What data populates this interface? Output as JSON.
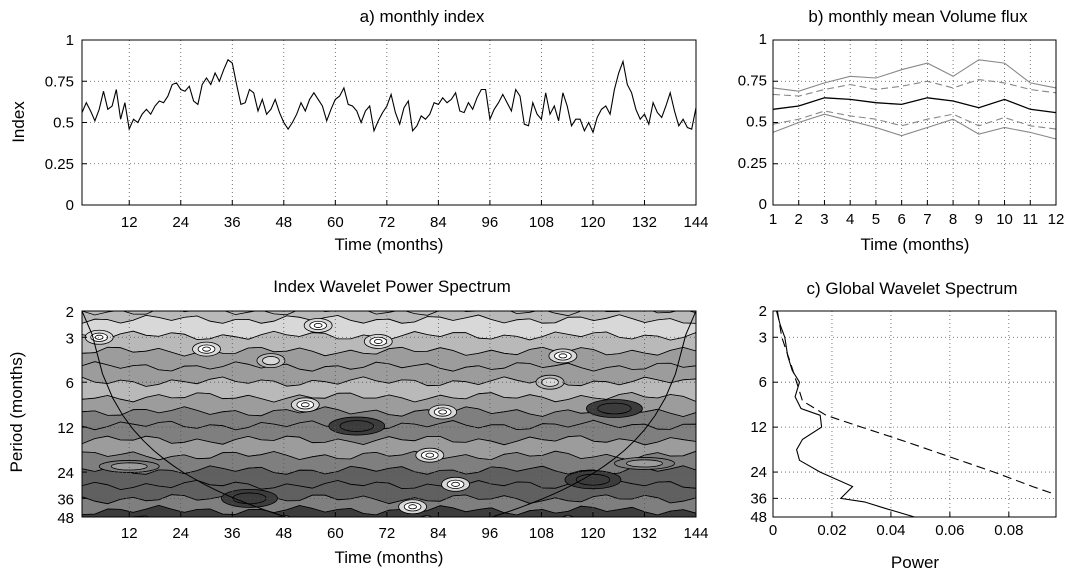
{
  "chart_data": [
    {
      "id": "a",
      "type": "line",
      "title": "a) monthly index",
      "xlabel": "Time (months)",
      "ylabel": "Index",
      "xlim": [
        1,
        144
      ],
      "ylim": [
        0,
        1
      ],
      "xticks": [
        "12",
        "24",
        "36",
        "48",
        "60",
        "72",
        "84",
        "96",
        "108",
        "120",
        "132",
        "144"
      ],
      "yticks": [
        "0",
        "0.25",
        "0.5",
        "0.75",
        "1"
      ],
      "grid": true,
      "series": [
        {
          "x_start": 1,
          "x_step": 1,
          "values": [
            0.56,
            0.62,
            0.57,
            0.51,
            0.58,
            0.69,
            0.58,
            0.6,
            0.7,
            0.52,
            0.62,
            0.46,
            0.52,
            0.5,
            0.55,
            0.58,
            0.55,
            0.6,
            0.63,
            0.62,
            0.66,
            0.73,
            0.74,
            0.7,
            0.69,
            0.72,
            0.63,
            0.61,
            0.73,
            0.77,
            0.73,
            0.8,
            0.75,
            0.82,
            0.88,
            0.86,
            0.73,
            0.61,
            0.62,
            0.7,
            0.68,
            0.57,
            0.64,
            0.55,
            0.58,
            0.64,
            0.56,
            0.5,
            0.46,
            0.5,
            0.55,
            0.62,
            0.57,
            0.64,
            0.68,
            0.64,
            0.6,
            0.51,
            0.58,
            0.64,
            0.66,
            0.71,
            0.61,
            0.6,
            0.57,
            0.5,
            0.57,
            0.6,
            0.45,
            0.51,
            0.56,
            0.6,
            0.67,
            0.56,
            0.49,
            0.59,
            0.63,
            0.45,
            0.48,
            0.54,
            0.52,
            0.55,
            0.62,
            0.61,
            0.65,
            0.62,
            0.64,
            0.68,
            0.57,
            0.56,
            0.62,
            0.58,
            0.65,
            0.7,
            0.7,
            0.52,
            0.58,
            0.62,
            0.67,
            0.62,
            0.57,
            0.7,
            0.66,
            0.49,
            0.48,
            0.62,
            0.55,
            0.52,
            0.68,
            0.55,
            0.6,
            0.51,
            0.68,
            0.6,
            0.48,
            0.52,
            0.52,
            0.45,
            0.5,
            0.44,
            0.53,
            0.58,
            0.6,
            0.55,
            0.7,
            0.8,
            0.87,
            0.73,
            0.68,
            0.58,
            0.52,
            0.55,
            0.49,
            0.62,
            0.56,
            0.53,
            0.6,
            0.68,
            0.57,
            0.48,
            0.52,
            0.47,
            0.46,
            0.59
          ]
        }
      ]
    },
    {
      "id": "b",
      "type": "line",
      "title": "b) monthly mean Volume flux",
      "xlabel": "Time (months)",
      "xlim": [
        1,
        12
      ],
      "ylim": [
        0,
        1
      ],
      "xticks": [
        "1",
        "2",
        "3",
        "4",
        "5",
        "6",
        "7",
        "8",
        "9",
        "10",
        "11",
        "12"
      ],
      "yticks": [
        "0",
        "0.25",
        "0.5",
        "0.75",
        "1"
      ],
      "grid": true,
      "series": [
        {
          "style": "outer-solid-gray",
          "values": [
            0.71,
            0.69,
            0.74,
            0.78,
            0.77,
            0.82,
            0.86,
            0.78,
            0.88,
            0.86,
            0.74,
            0.71
          ]
        },
        {
          "style": "dashed-gray",
          "values": [
            0.67,
            0.66,
            0.7,
            0.73,
            0.7,
            0.72,
            0.75,
            0.71,
            0.76,
            0.74,
            0.7,
            0.68
          ]
        },
        {
          "style": "mean-solid-black",
          "values": [
            0.58,
            0.6,
            0.65,
            0.64,
            0.62,
            0.61,
            0.65,
            0.63,
            0.59,
            0.64,
            0.58,
            0.56
          ]
        },
        {
          "style": "dashed-gray",
          "values": [
            0.49,
            0.52,
            0.57,
            0.54,
            0.52,
            0.48,
            0.52,
            0.55,
            0.48,
            0.53,
            0.48,
            0.46
          ]
        },
        {
          "style": "outer-solid-gray",
          "values": [
            0.44,
            0.5,
            0.55,
            0.51,
            0.47,
            0.42,
            0.47,
            0.52,
            0.43,
            0.47,
            0.44,
            0.4
          ]
        }
      ]
    },
    {
      "id": "wps",
      "type": "heatmap",
      "title": "Index Wavelet Power Spectrum",
      "xlabel": "Time (months)",
      "ylabel": "Period (months)",
      "xlim": [
        1,
        144
      ],
      "ylim": [
        2,
        48
      ],
      "yscale": "log",
      "xticks": [
        "12",
        "24",
        "36",
        "48",
        "60",
        "72",
        "84",
        "96",
        "108",
        "120",
        "132",
        "144"
      ],
      "yticks": [
        "2",
        "3",
        "6",
        "12",
        "24",
        "36",
        "48"
      ],
      "grid": true,
      "period_bands": [
        {
          "period": 2.0,
          "level": 2
        },
        {
          "period": 2.6,
          "level": 1
        },
        {
          "period": 3.3,
          "level": 2
        },
        {
          "period": 4.2,
          "level": 3
        },
        {
          "period": 5.3,
          "level": 3
        },
        {
          "period": 6.7,
          "level": 2
        },
        {
          "period": 8.5,
          "level": 3
        },
        {
          "period": 10.5,
          "level": 4
        },
        {
          "period": 13.0,
          "level": 4
        },
        {
          "period": 16.5,
          "level": 3
        },
        {
          "period": 21.0,
          "level": 4
        },
        {
          "period": 26.0,
          "level": 5
        },
        {
          "period": 33.0,
          "level": 5
        },
        {
          "period": 40.0,
          "level": 4
        },
        {
          "period": 47.0,
          "level": 6
        }
      ],
      "blobs": [
        {
          "x": 5,
          "period": 3.0,
          "level": 0
        },
        {
          "x": 30,
          "period": 3.6,
          "level": 0
        },
        {
          "x": 56,
          "period": 2.5,
          "level": 0
        },
        {
          "x": 45,
          "period": 4.3,
          "level": 1
        },
        {
          "x": 113,
          "period": 4.0,
          "level": 0
        },
        {
          "x": 85,
          "period": 9.5,
          "level": 0
        },
        {
          "x": 53,
          "period": 8.5,
          "level": 0
        },
        {
          "x": 110,
          "period": 6.0,
          "level": 1
        },
        {
          "x": 70,
          "period": 3.2,
          "level": 0
        },
        {
          "x": 125,
          "period": 9.0,
          "level": 6
        },
        {
          "x": 65,
          "period": 11.8,
          "level": 6
        },
        {
          "x": 120,
          "period": 27.0,
          "level": 6
        },
        {
          "x": 40,
          "period": 36.0,
          "level": 6
        },
        {
          "x": 82,
          "period": 18.5,
          "level": 0
        },
        {
          "x": 88,
          "period": 29.0,
          "level": 0
        },
        {
          "x": 78,
          "period": 41.0,
          "level": 0
        },
        {
          "x": 12,
          "period": 22.0,
          "level": 3
        },
        {
          "x": 132,
          "period": 21.0,
          "level": 3
        }
      ],
      "grayscale": [
        "#ffffff",
        "#d8d8d8",
        "#b9b9b9",
        "#9c9c9c",
        "#7f7f7f",
        "#606060",
        "#3c3c3c"
      ]
    },
    {
      "id": "c",
      "type": "line",
      "title": "c) Global Wavelet Spectrum",
      "xlabel": "Power",
      "xlim": [
        0,
        0.096
      ],
      "ylim": [
        2,
        48
      ],
      "yscale": "log",
      "xticks": [
        "0",
        "0.02",
        "0.04",
        "0.06",
        "0.08"
      ],
      "yticks": [
        "2",
        "3",
        "6",
        "12",
        "24",
        "36",
        "48"
      ],
      "grid": true,
      "series": [
        {
          "style": "solid",
          "points": [
            [
              0.0012,
              2
            ],
            [
              0.0025,
              2.5
            ],
            [
              0.004,
              3
            ],
            [
              0.005,
              4
            ],
            [
              0.0065,
              5
            ],
            [
              0.009,
              6
            ],
            [
              0.0075,
              7.5
            ],
            [
              0.0095,
              9
            ],
            [
              0.016,
              10
            ],
            [
              0.0165,
              12
            ],
            [
              0.01,
              14.5
            ],
            [
              0.008,
              17
            ],
            [
              0.009,
              20
            ],
            [
              0.016,
              24
            ],
            [
              0.027,
              30
            ],
            [
              0.023,
              36
            ],
            [
              0.031,
              38
            ],
            [
              0.038,
              42
            ],
            [
              0.048,
              48
            ]
          ]
        },
        {
          "style": "dashed",
          "points": [
            [
              0.0015,
              2
            ],
            [
              0.003,
              3
            ],
            [
              0.006,
              4.5
            ],
            [
              0.008,
              6
            ],
            [
              0.01,
              8
            ],
            [
              0.018,
              10
            ],
            [
              0.03,
              12
            ],
            [
              0.045,
              15
            ],
            [
              0.06,
              19
            ],
            [
              0.075,
              24
            ],
            [
              0.088,
              30
            ],
            [
              0.096,
              34
            ]
          ]
        }
      ]
    }
  ]
}
